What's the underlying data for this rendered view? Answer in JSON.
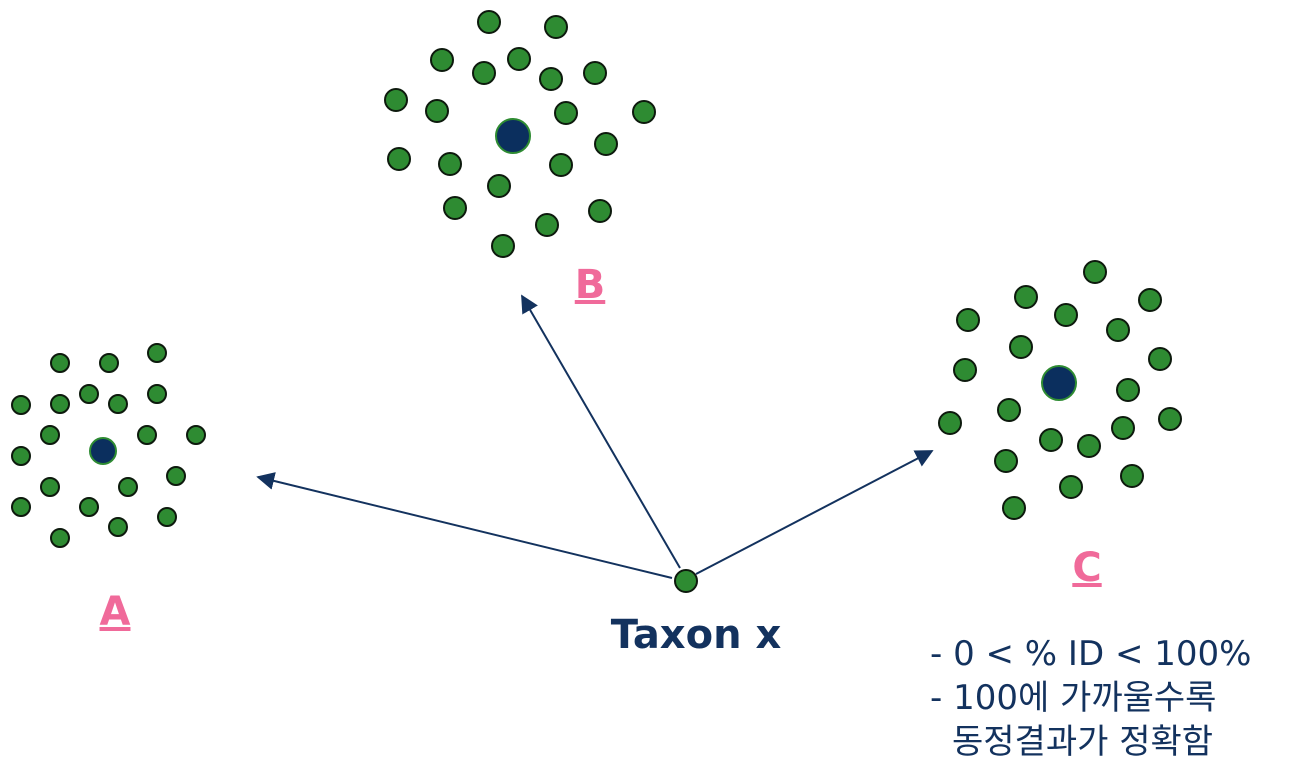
{
  "diagram": {
    "clusters": [
      {
        "id": "A",
        "label": "A"
      },
      {
        "id": "B",
        "label": "B"
      },
      {
        "id": "C",
        "label": "C"
      }
    ],
    "query_node": {
      "label": "Taxon x"
    },
    "notes": [
      "- 0 < % ID < 100%",
      "- 100에 가까울수록",
      "동정결과가 정확함"
    ],
    "colors": {
      "member_dot": "#2e8b32",
      "centroid_dot": "#0b2f5e",
      "arrow": "#13325e",
      "cluster_label": "#f06a9a",
      "text": "#13325e"
    }
  }
}
